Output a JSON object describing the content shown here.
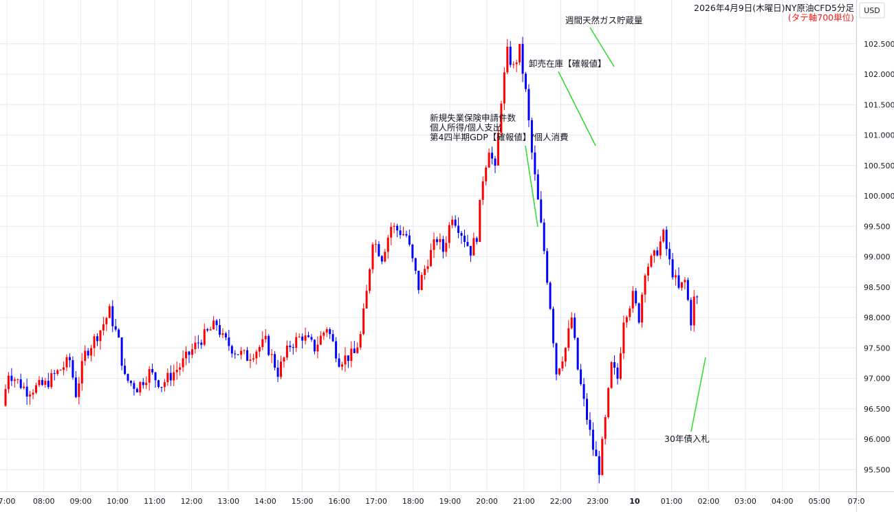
{
  "chart_data": {
    "type": "candlestick",
    "title": "2026年4月9日(木曜日)NY原油CFD5分足",
    "subtitle": "(タテ軸700単位)",
    "currency": "USD",
    "ylim": [
      95.1,
      102.75
    ],
    "y_ticks": [
      "95.500",
      "96.000",
      "96.500",
      "97.000",
      "97.500",
      "98.000",
      "98.500",
      "99.000",
      "99.500",
      "100.000",
      "100.500",
      "101.000",
      "101.500",
      "102.000",
      "102.500"
    ],
    "x_ticks": [
      {
        "label": "7:00",
        "bold": false
      },
      {
        "label": "08:00",
        "bold": false
      },
      {
        "label": "09:00",
        "bold": false
      },
      {
        "label": "10:00",
        "bold": false
      },
      {
        "label": "11:00",
        "bold": false
      },
      {
        "label": "12:00",
        "bold": false
      },
      {
        "label": "13:00",
        "bold": false
      },
      {
        "label": "14:00",
        "bold": false
      },
      {
        "label": "15:00",
        "bold": false
      },
      {
        "label": "16:00",
        "bold": false
      },
      {
        "label": "17:00",
        "bold": false
      },
      {
        "label": "18:00",
        "bold": false
      },
      {
        "label": "19:00",
        "bold": false
      },
      {
        "label": "20:00",
        "bold": false
      },
      {
        "label": "21:00",
        "bold": false
      },
      {
        "label": "22:00",
        "bold": false
      },
      {
        "label": "23:00",
        "bold": false
      },
      {
        "label": "10",
        "bold": true
      },
      {
        "label": "01:00",
        "bold": false
      },
      {
        "label": "02:00",
        "bold": false
      },
      {
        "label": "03:00",
        "bold": false
      },
      {
        "label": "04:00",
        "bold": false
      },
      {
        "label": "05:00",
        "bold": false
      },
      {
        "label": "07:0",
        "bold": false
      }
    ],
    "anchors": [
      {
        "t": 0,
        "p": 96.55
      },
      {
        "t": 2,
        "p": 97.1
      },
      {
        "t": 8,
        "p": 96.8
      },
      {
        "t": 14,
        "p": 96.9
      },
      {
        "t": 18,
        "p": 97.1
      },
      {
        "t": 22,
        "p": 97.3
      },
      {
        "t": 24,
        "p": 96.75
      },
      {
        "t": 27,
        "p": 97.4
      },
      {
        "t": 32,
        "p": 97.8
      },
      {
        "t": 35,
        "p": 98.1
      },
      {
        "t": 38,
        "p": 97.6
      },
      {
        "t": 40,
        "p": 97.0
      },
      {
        "t": 44,
        "p": 96.85
      },
      {
        "t": 48,
        "p": 97.1
      },
      {
        "t": 52,
        "p": 96.9
      },
      {
        "t": 58,
        "p": 97.2
      },
      {
        "t": 64,
        "p": 97.6
      },
      {
        "t": 70,
        "p": 97.9
      },
      {
        "t": 72,
        "p": 97.65
      },
      {
        "t": 76,
        "p": 97.45
      },
      {
        "t": 80,
        "p": 97.35
      },
      {
        "t": 86,
        "p": 97.6
      },
      {
        "t": 90,
        "p": 97.1
      },
      {
        "t": 94,
        "p": 97.55
      },
      {
        "t": 98,
        "p": 97.7
      },
      {
        "t": 102,
        "p": 97.5
      },
      {
        "t": 106,
        "p": 97.85
      },
      {
        "t": 110,
        "p": 97.3
      },
      {
        "t": 115,
        "p": 97.4
      },
      {
        "t": 117,
        "p": 97.7
      },
      {
        "t": 119,
        "p": 98.4
      },
      {
        "t": 121,
        "p": 99.3
      },
      {
        "t": 124,
        "p": 99.0
      },
      {
        "t": 127,
        "p": 99.5
      },
      {
        "t": 132,
        "p": 99.35
      },
      {
        "t": 136,
        "p": 98.5
      },
      {
        "t": 139,
        "p": 98.95
      },
      {
        "t": 142,
        "p": 99.3
      },
      {
        "t": 144,
        "p": 99.1
      },
      {
        "t": 147,
        "p": 99.7
      },
      {
        "t": 150,
        "p": 99.4
      },
      {
        "t": 153,
        "p": 99.1
      },
      {
        "t": 155,
        "p": 99.35
      },
      {
        "t": 157,
        "p": 100.3
      },
      {
        "t": 159,
        "p": 100.8
      },
      {
        "t": 161,
        "p": 100.4
      },
      {
        "t": 163,
        "p": 101.6
      },
      {
        "t": 165,
        "p": 102.35
      },
      {
        "t": 167,
        "p": 102.1
      },
      {
        "t": 169,
        "p": 102.4
      },
      {
        "t": 171,
        "p": 101.7
      },
      {
        "t": 173,
        "p": 100.7
      },
      {
        "t": 175,
        "p": 99.9
      },
      {
        "t": 177,
        "p": 99.1
      },
      {
        "t": 179,
        "p": 98.2
      },
      {
        "t": 181,
        "p": 97.1
      },
      {
        "t": 184,
        "p": 97.5
      },
      {
        "t": 186,
        "p": 98.0
      },
      {
        "t": 188,
        "p": 97.15
      },
      {
        "t": 190,
        "p": 96.6
      },
      {
        "t": 193,
        "p": 95.85
      },
      {
        "t": 195,
        "p": 95.5
      },
      {
        "t": 197,
        "p": 96.3
      },
      {
        "t": 199,
        "p": 97.2
      },
      {
        "t": 201,
        "p": 97.0
      },
      {
        "t": 203,
        "p": 98.0
      },
      {
        "t": 206,
        "p": 98.35
      },
      {
        "t": 208,
        "p": 98.0
      },
      {
        "t": 210,
        "p": 98.8
      },
      {
        "t": 213,
        "p": 99.0
      },
      {
        "t": 216,
        "p": 99.35
      },
      {
        "t": 218,
        "p": 98.9
      },
      {
        "t": 221,
        "p": 98.45
      },
      {
        "t": 223,
        "p": 98.6
      },
      {
        "t": 225,
        "p": 97.95
      },
      {
        "t": 226,
        "p": 98.3
      }
    ],
    "annotations": [
      {
        "lines": [
          "週間天然ガス貯蔵量"
        ]
      },
      {
        "lines": [
          "卸売在庫【確報値】"
        ]
      },
      {
        "lines": [
          "新規失業保険申請件数",
          "個人所得/個人支出",
          "第4四半期GDP【確報値】/個人消費"
        ]
      },
      {
        "lines": [
          "30年債入札"
        ]
      }
    ],
    "grid": true,
    "colors": {
      "up": "#ff0000",
      "down": "#0000ff",
      "grid": "#e6e9ee",
      "axis": "#d1d4dc",
      "leader": "#33dd33",
      "subtitle": "#ff1a1a"
    }
  }
}
